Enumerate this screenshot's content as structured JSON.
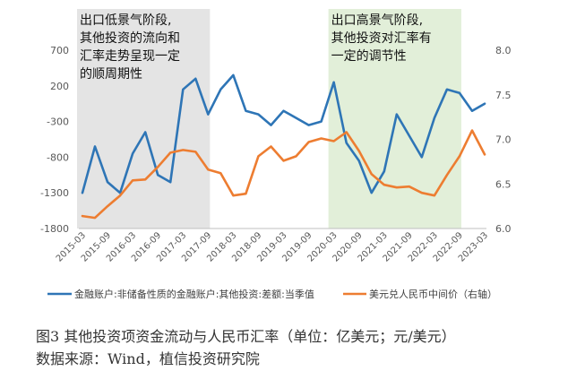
{
  "chart_data": {
    "type": "line",
    "x": [
      "2015-03",
      "2015-06",
      "2015-09",
      "2015-12",
      "2016-03",
      "2016-06",
      "2016-09",
      "2016-12",
      "2017-03",
      "2017-06",
      "2017-09",
      "2017-12",
      "2018-03",
      "2018-06",
      "2018-09",
      "2018-12",
      "2019-03",
      "2019-06",
      "2019-09",
      "2019-12",
      "2020-03",
      "2020-06",
      "2020-09",
      "2020-12",
      "2021-03",
      "2021-06",
      "2021-09",
      "2021-12",
      "2022-03",
      "2022-06",
      "2022-09",
      "2022-12",
      "2023-03"
    ],
    "xticks": [
      "2015-03",
      "2015-09",
      "2016-03",
      "2016-09",
      "2017-03",
      "2017-09",
      "2018-03",
      "2018-09",
      "2019-03",
      "2019-09",
      "2020-03",
      "2020-09",
      "2021-03",
      "2021-09",
      "2022-03",
      "2022-09",
      "2023-03"
    ],
    "series": [
      {
        "name": "金融账户:非储备性质的金融账户:其他投资:差额:当季值",
        "axis": "left",
        "color": "#2E75B6",
        "values": [
          -1300,
          -650,
          -1150,
          -1300,
          -750,
          -450,
          -1050,
          -1150,
          150,
          300,
          -200,
          150,
          350,
          -150,
          -200,
          -350,
          -150,
          -250,
          -350,
          -300,
          250,
          -600,
          -850,
          -1300,
          -1000,
          -200,
          -500,
          -800,
          -250,
          150,
          100,
          -150,
          -50
        ]
      },
      {
        "name": "美元兑人民币中间价（右轴）",
        "axis": "right",
        "color": "#ED7D31",
        "values": [
          6.14,
          6.12,
          6.25,
          6.37,
          6.54,
          6.55,
          6.69,
          6.85,
          6.88,
          6.86,
          6.66,
          6.62,
          6.37,
          6.39,
          6.81,
          6.92,
          6.76,
          6.81,
          6.97,
          7.01,
          6.98,
          7.08,
          6.87,
          6.61,
          6.49,
          6.46,
          6.47,
          6.4,
          6.37,
          6.6,
          6.81,
          7.1,
          6.83
        ]
      }
    ],
    "y_left": {
      "ylim": [
        -1800,
        700
      ],
      "ticks": [
        -1800,
        -1300,
        -800,
        -300,
        200,
        700
      ]
    },
    "y_right": {
      "ylim": [
        6.0,
        8.0
      ],
      "ticks": [
        "6.0",
        "6.5",
        "7.0",
        "7.5",
        "8.0"
      ]
    },
    "shaded_regions": [
      {
        "from": "2015-03",
        "to": "2017-09",
        "color": "#E4E4E4",
        "label_lines": [
          "出口低景气阶段,",
          "其他投资的流向和",
          "汇率走势呈现一定",
          "的顺周期性"
        ]
      },
      {
        "from": "2020-03",
        "to": "2022-09",
        "color": "#E2EFD9",
        "label_lines": [
          "出口高景气阶段,",
          "其他投资对汇率有",
          "一定的调节性"
        ]
      }
    ],
    "legend_position": "bottom",
    "grid": false
  },
  "caption": {
    "line1": "图3  其他投资项资金流动与人民币汇率（单位：亿美元；元/美元）",
    "line2": "数据来源：Wind，植信投资研究院"
  }
}
